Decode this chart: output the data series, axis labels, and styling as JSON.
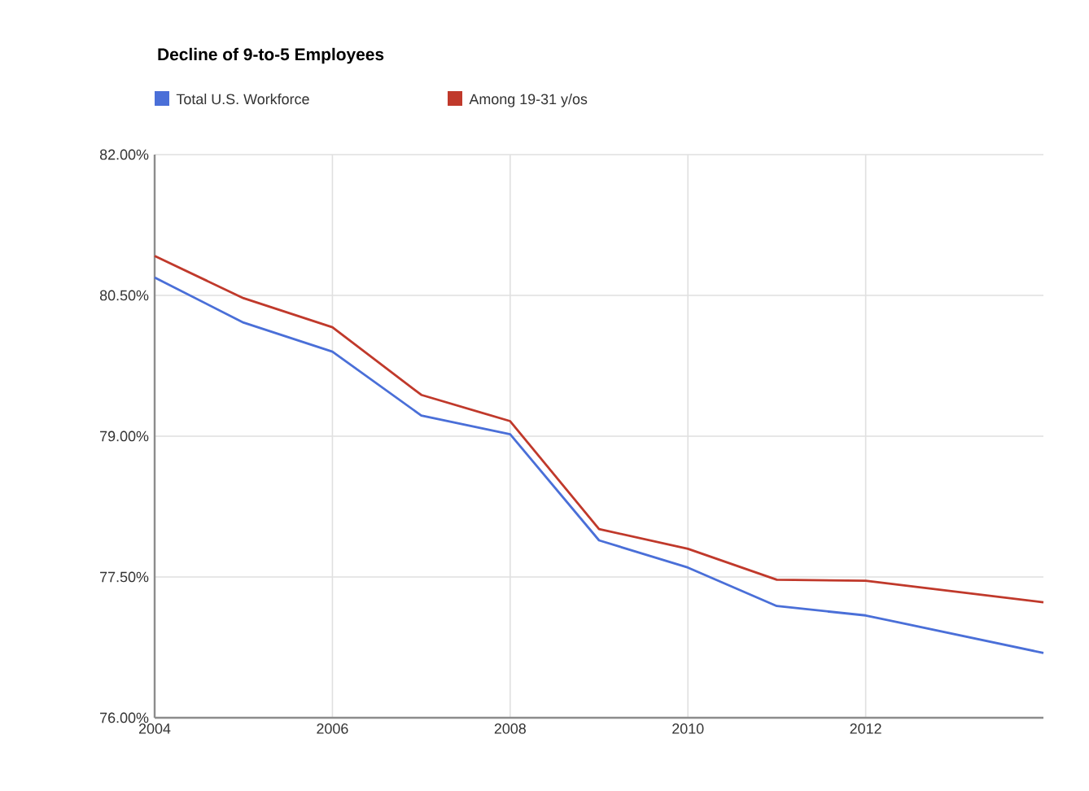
{
  "chart_data": {
    "type": "line",
    "title": "Decline of 9-to-5 Employees",
    "x": [
      2004,
      2005,
      2006,
      2007,
      2008,
      2009,
      2010,
      2011,
      2012,
      2014
    ],
    "series": [
      {
        "name": "Total U.S. Workforce",
        "color": "#4a6fd8",
        "values": [
          80.69,
          80.21,
          79.9,
          79.22,
          79.02,
          77.89,
          77.6,
          77.19,
          77.09,
          76.69
        ]
      },
      {
        "name": "Among 19-31 y/os",
        "color": "#c0392b",
        "values": [
          80.92,
          80.47,
          80.16,
          79.44,
          79.16,
          78.01,
          77.8,
          77.47,
          77.46,
          77.23
        ]
      }
    ],
    "xlim": [
      2004,
      2014
    ],
    "xticks": [
      2004,
      2006,
      2008,
      2010,
      2012
    ],
    "ylim": [
      76,
      82
    ],
    "yticks": [
      {
        "value": 76,
        "label": "76.00%"
      },
      {
        "value": 77.5,
        "label": "77.50%"
      },
      {
        "value": 79,
        "label": "79.00%"
      },
      {
        "value": 80.5,
        "label": "80.50%"
      },
      {
        "value": 82,
        "label": "82.00%"
      }
    ],
    "grid": true,
    "legend": "top left",
    "marker": "none",
    "line_style": "solid"
  }
}
